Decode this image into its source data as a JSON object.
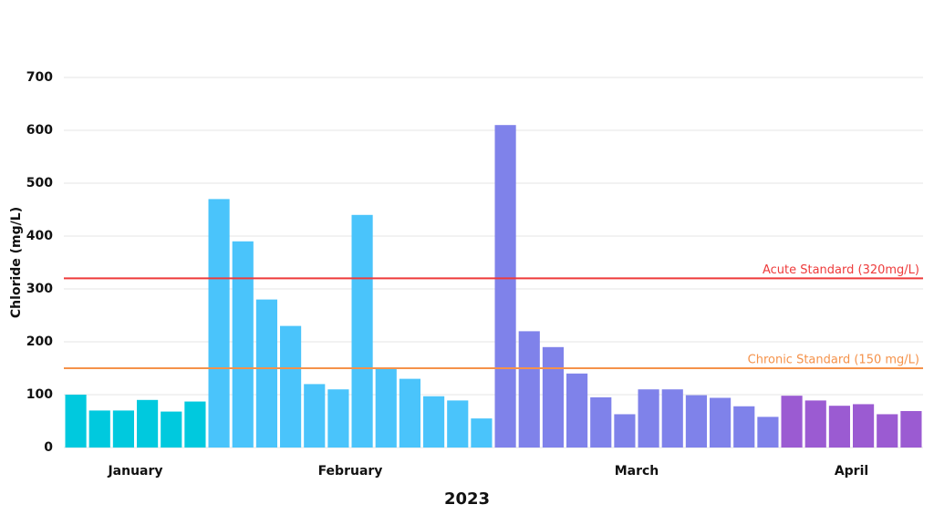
{
  "chart_data": {
    "type": "bar",
    "ylabel": "Chloride (mg/L)",
    "xlabel": "2023",
    "ylim": [
      0,
      700
    ],
    "yticks": [
      0,
      100,
      200,
      300,
      400,
      500,
      600,
      700
    ],
    "grid": true,
    "groups": [
      {
        "label": "January",
        "color": "#00c9de",
        "values": [
          100,
          70,
          70,
          90,
          68,
          87
        ]
      },
      {
        "label": "February",
        "color": "#4ac4fb",
        "values": [
          470,
          390,
          280,
          230,
          120,
          110,
          440,
          150,
          130,
          97,
          89,
          55
        ]
      },
      {
        "label": "March",
        "color": "#7f82ea",
        "values": [
          610,
          220,
          190,
          140,
          95,
          63,
          110,
          110,
          99,
          94,
          78,
          58
        ]
      },
      {
        "label": "April",
        "color": "#9b5bd2",
        "values": [
          98,
          89,
          79,
          82,
          63,
          69
        ]
      }
    ],
    "reference_lines": [
      {
        "label": "Acute Standard (320mg/L)",
        "value": 320,
        "color": "#ee3b3b"
      },
      {
        "label": "Chronic Standard (150 mg/L)",
        "value": 150,
        "color": "#f5924a"
      }
    ]
  }
}
